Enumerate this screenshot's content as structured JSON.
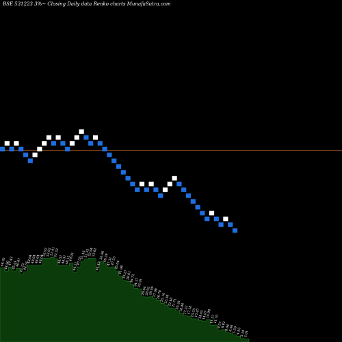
{
  "header": {
    "title": "BSE 531223 3%~  Closing Daily data  Renko  charts MunafaSutra.com"
  },
  "colors": {
    "background": "#000000",
    "brick_up": "#ffffff",
    "brick_down": "#1e6fe0",
    "reference_line": "#c0652a",
    "volume_fill": "#0b3a0b",
    "volume_edge": "#1f7a1f",
    "volume_text": "#ffffff"
  },
  "chart_data": {
    "type": "renko",
    "brick_size": "3%",
    "reference_level": 26.0,
    "bricks": [
      {
        "dir": "down",
        "close": 26.2
      },
      {
        "dir": "up",
        "close": 27.0
      },
      {
        "dir": "down",
        "close": 26.2
      },
      {
        "dir": "up",
        "close": 27.0
      },
      {
        "dir": "down",
        "close": 26.2
      },
      {
        "dir": "down",
        "close": 25.4
      },
      {
        "dir": "down",
        "close": 24.6
      },
      {
        "dir": "up",
        "close": 25.4
      },
      {
        "dir": "up",
        "close": 26.2
      },
      {
        "dir": "up",
        "close": 27.0
      },
      {
        "dir": "up",
        "close": 27.8
      },
      {
        "dir": "down",
        "close": 27.0
      },
      {
        "dir": "up",
        "close": 27.8
      },
      {
        "dir": "down",
        "close": 27.0
      },
      {
        "dir": "down",
        "close": 26.2
      },
      {
        "dir": "up",
        "close": 27.0
      },
      {
        "dir": "up",
        "close": 27.8
      },
      {
        "dir": "up",
        "close": 28.6
      },
      {
        "dir": "down",
        "close": 27.8
      },
      {
        "dir": "down",
        "close": 27.0
      },
      {
        "dir": "up",
        "close": 27.8
      },
      {
        "dir": "down",
        "close": 27.0
      },
      {
        "dir": "down",
        "close": 26.2
      },
      {
        "dir": "down",
        "close": 25.4
      },
      {
        "dir": "down",
        "close": 24.6
      },
      {
        "dir": "down",
        "close": 23.8
      },
      {
        "dir": "down",
        "close": 23.0
      },
      {
        "dir": "down",
        "close": 22.2
      },
      {
        "dir": "down",
        "close": 21.4
      },
      {
        "dir": "down",
        "close": 20.6
      },
      {
        "dir": "up",
        "close": 21.4
      },
      {
        "dir": "down",
        "close": 20.6
      },
      {
        "dir": "up",
        "close": 21.4
      },
      {
        "dir": "down",
        "close": 20.6
      },
      {
        "dir": "down",
        "close": 19.8
      },
      {
        "dir": "up",
        "close": 20.6
      },
      {
        "dir": "up",
        "close": 21.4
      },
      {
        "dir": "up",
        "close": 22.2
      },
      {
        "dir": "down",
        "close": 21.4
      },
      {
        "dir": "down",
        "close": 20.6
      },
      {
        "dir": "down",
        "close": 19.8
      },
      {
        "dir": "down",
        "close": 19.0
      },
      {
        "dir": "down",
        "close": 18.2
      },
      {
        "dir": "down",
        "close": 17.4
      },
      {
        "dir": "down",
        "close": 16.6
      },
      {
        "dir": "up",
        "close": 17.4
      },
      {
        "dir": "down",
        "close": 16.6
      },
      {
        "dir": "down",
        "close": 15.8
      },
      {
        "dir": "up",
        "close": 16.6
      },
      {
        "dir": "down",
        "close": 15.8
      },
      {
        "dir": "down",
        "close": 15.0
      }
    ],
    "volume_labels": [
      "46.92",
      "44.96",
      "47.43",
      "45.01",
      "46.67",
      "43.23",
      "44.55",
      "48.64",
      "48.64",
      "48.64",
      "48.64",
      "52.92",
      "52.92",
      "53.41",
      "52.53",
      "48.51",
      "48.51",
      "48.13",
      "49.95",
      "44.27",
      "47.55",
      "51.16",
      "52.32",
      "52.94",
      "52.81",
      "44.43",
      "50.96",
      "49.39",
      "47.31",
      "47.53",
      "45.04",
      "41.98",
      "39.27",
      "38.61",
      "36.72",
      "34.37",
      "33.91",
      "29.04",
      "28.92",
      "29.09",
      "27.98",
      "26.78",
      "25.10",
      "23.98",
      "22.18",
      "21.71",
      "20.26",
      "18.86",
      "17.33",
      "17.18",
      "15.55",
      "15.47",
      "14.45",
      "14.07",
      "14.98",
      "11.57",
      "11.70",
      "8.57",
      "8.81",
      "6.94",
      "6.66",
      "5.59",
      "4.83",
      "3.34",
      "3.01"
    ]
  }
}
